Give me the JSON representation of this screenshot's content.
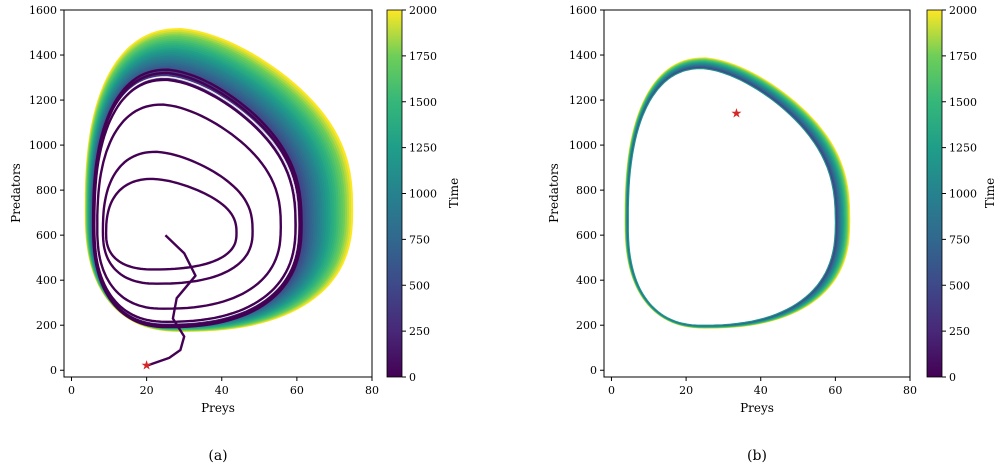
{
  "chart_data": [
    {
      "type": "line",
      "caption": "(a)",
      "xlabel": "Preys",
      "ylabel": "Predators",
      "xlim": [
        -2,
        80
      ],
      "ylim": [
        -30,
        1600
      ],
      "xticks": [
        0,
        20,
        40,
        60,
        80
      ],
      "yticks": [
        0,
        200,
        400,
        600,
        800,
        1000,
        1200,
        1400,
        1600
      ],
      "colorbar": {
        "label": "Time",
        "range": [
          0,
          2000
        ],
        "ticks": [
          0,
          250,
          500,
          750,
          1000,
          1250,
          1500,
          1750,
          2000
        ],
        "colormap": "viridis"
      },
      "start_marker": {
        "x": 20,
        "y": 20,
        "color": "#d62728"
      },
      "spiral_loops_y_max": [
        850,
        970,
        1180,
        1290,
        1320,
        1335
      ],
      "envelope_outer": {
        "x_min": 3.5,
        "x_max": 75,
        "y_min": 170,
        "y_max": 1520
      },
      "envelope_inner": {
        "x_min": 6,
        "x_max": 60,
        "y_min": 210,
        "y_max": 1300
      },
      "grid": false
    },
    {
      "type": "line",
      "caption": "(b)",
      "xlabel": "Preys",
      "ylabel": "Predators",
      "xlim": [
        -2,
        80
      ],
      "ylim": [
        -30,
        1600
      ],
      "xticks": [
        0,
        20,
        40,
        60,
        80
      ],
      "yticks": [
        0,
        200,
        400,
        600,
        800,
        1000,
        1200,
        1400,
        1600
      ],
      "colorbar": {
        "label": "Time",
        "range": [
          0,
          2000
        ],
        "ticks": [
          0,
          250,
          500,
          750,
          1000,
          1250,
          1500,
          1750,
          2000
        ],
        "colormap": "viridis"
      },
      "start_marker": {
        "x": 33.5,
        "y": 1140,
        "color": "#d62728"
      },
      "limit_cycle": {
        "x_min": 4.5,
        "x_max": 60,
        "y_min": 200,
        "y_max": 1340
      },
      "envelope_outer": {
        "x_min": 3.5,
        "x_max": 64,
        "y_min": 185,
        "y_max": 1390
      },
      "grid": false
    }
  ]
}
